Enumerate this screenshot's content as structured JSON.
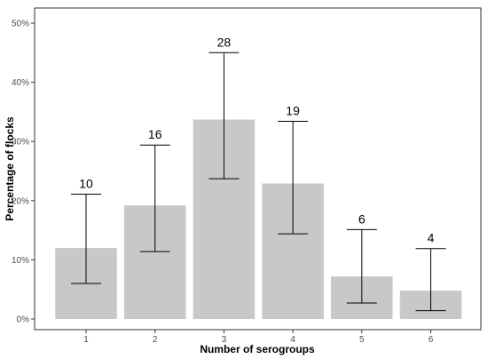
{
  "chart_data": {
    "type": "bar",
    "categories": [
      "1",
      "2",
      "3",
      "4",
      "5",
      "6"
    ],
    "values": [
      12.0,
      19.2,
      33.7,
      22.9,
      7.2,
      4.8
    ],
    "error_low": [
      6.0,
      11.4,
      23.7,
      14.4,
      2.7,
      1.4
    ],
    "error_high": [
      21.1,
      29.4,
      45.0,
      33.4,
      15.1,
      11.9
    ],
    "data_labels": [
      "10",
      "16",
      "28",
      "19",
      "6",
      "4"
    ],
    "xlabel": "Number of serogroups",
    "ylabel": "Percentage of flocks",
    "ylim": [
      0,
      50
    ],
    "yticks": [
      0,
      10,
      20,
      30,
      40,
      50
    ],
    "ytick_labels": [
      "0%",
      "10%",
      "20%",
      "30%",
      "40%",
      "50%"
    ],
    "grid": false,
    "colors": {
      "bar": "#c8c8c8",
      "error_bar": "#000000",
      "panel_border": "#333333"
    }
  }
}
